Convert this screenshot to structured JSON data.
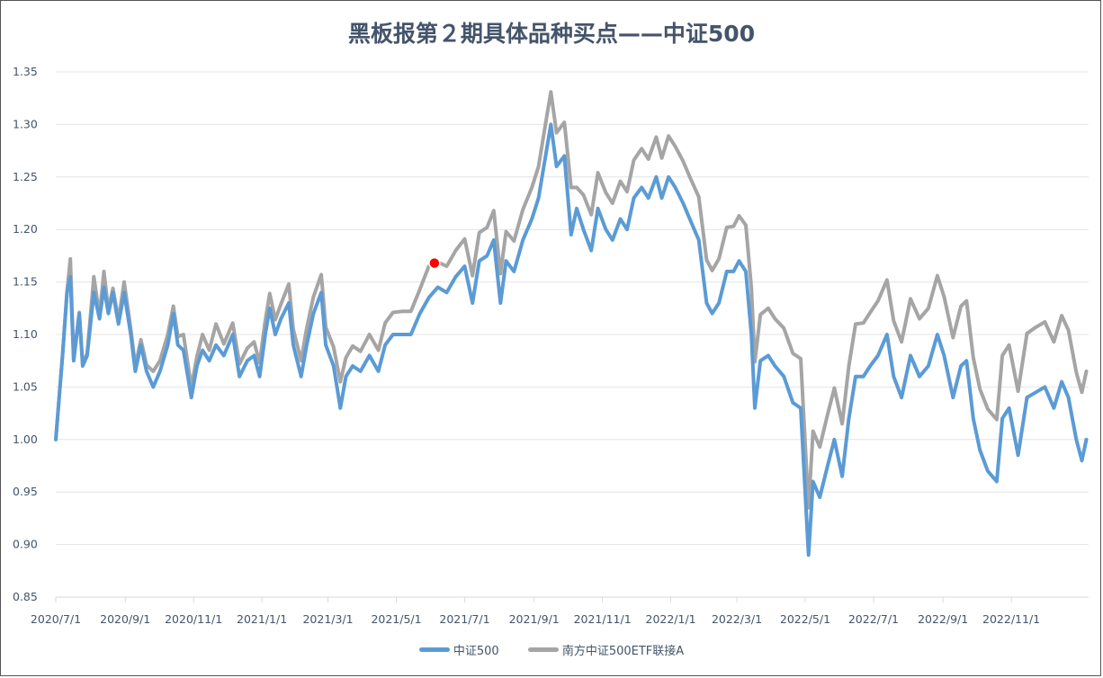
{
  "chart_data": {
    "type": "line",
    "title": "黑板报第２期具体品种买点——中证500",
    "xlabel": "",
    "ylabel": "",
    "x_start": "2020/7/1",
    "x_unit": "days since 2020/7/1",
    "xlim": [
      0,
      922
    ],
    "ylim": [
      0.85,
      1.35
    ],
    "y_ticks": [
      "0.85",
      "0.90",
      "0.95",
      "1.00",
      "1.05",
      "1.10",
      "1.15",
      "1.20",
      "1.25",
      "1.30",
      "1.35"
    ],
    "x_ticks": [
      {
        "label": "2020/7/1",
        "day": 0
      },
      {
        "label": "2020/9/1",
        "day": 62
      },
      {
        "label": "2020/11/1",
        "day": 123
      },
      {
        "label": "2021/1/1",
        "day": 184
      },
      {
        "label": "2021/3/1",
        "day": 243
      },
      {
        "label": "2021/5/1",
        "day": 304
      },
      {
        "label": "2021/7/1",
        "day": 365
      },
      {
        "label": "2021/9/1",
        "day": 427
      },
      {
        "label": "2021/11/1",
        "day": 488
      },
      {
        "label": "2022/1/1",
        "day": 549
      },
      {
        "label": "2022/3/1",
        "day": 608
      },
      {
        "label": "2022/5/1",
        "day": 669
      },
      {
        "label": "2022/7/1",
        "day": 730
      },
      {
        "label": "2022/9/1",
        "day": 792
      },
      {
        "label": "2022/11/1",
        "day": 853
      }
    ],
    "grid": true,
    "legend_position": "bottom",
    "x": [
      0,
      6,
      10,
      13,
      16,
      21,
      24,
      28,
      34,
      39,
      43,
      47,
      51,
      56,
      61,
      67,
      71,
      76,
      81,
      87,
      93,
      100,
      105,
      109,
      114,
      121,
      126,
      131,
      137,
      143,
      150,
      158,
      164,
      171,
      177,
      182,
      187,
      191,
      196,
      201,
      208,
      212,
      219,
      224,
      230,
      237,
      241,
      248,
      254,
      259,
      265,
      272,
      280,
      288,
      294,
      301,
      309,
      317,
      325,
      333,
      341,
      349,
      357,
      365,
      372,
      378,
      385,
      391,
      397,
      402,
      409,
      417,
      425,
      431,
      438,
      442,
      447,
      454,
      460,
      465,
      471,
      478,
      484,
      491,
      497,
      504,
      510,
      516,
      523,
      529,
      536,
      541,
      547,
      553,
      560,
      566,
      574,
      581,
      586,
      592,
      599,
      605,
      610,
      616,
      621,
      624,
      629,
      636,
      642,
      650,
      658,
      665,
      668,
      672,
      676,
      682,
      689,
      695,
      702,
      708,
      714,
      721,
      727,
      734,
      742,
      748,
      755,
      763,
      771,
      779,
      787,
      793,
      801,
      808,
      813,
      819,
      825,
      832,
      840,
      845,
      851,
      859,
      867,
      875,
      883,
      891,
      898,
      904,
      911,
      916,
      920
    ],
    "series": [
      {
        "name": "中证500",
        "color": "#5B9BD5",
        "values": [
          1.0,
          1.08,
          1.14,
          1.155,
          1.075,
          1.12,
          1.07,
          1.08,
          1.14,
          1.115,
          1.145,
          1.12,
          1.14,
          1.11,
          1.14,
          1.1,
          1.065,
          1.09,
          1.065,
          1.05,
          1.065,
          1.09,
          1.12,
          1.09,
          1.085,
          1.04,
          1.07,
          1.085,
          1.075,
          1.09,
          1.08,
          1.1,
          1.06,
          1.075,
          1.08,
          1.06,
          1.1,
          1.125,
          1.1,
          1.115,
          1.13,
          1.09,
          1.06,
          1.09,
          1.12,
          1.14,
          1.09,
          1.07,
          1.03,
          1.06,
          1.07,
          1.065,
          1.08,
          1.065,
          1.09,
          1.1,
          1.1,
          1.1,
          1.12,
          1.135,
          1.145,
          1.14,
          1.155,
          1.165,
          1.13,
          1.17,
          1.175,
          1.19,
          1.13,
          1.17,
          1.16,
          1.19,
          1.21,
          1.23,
          1.275,
          1.3,
          1.26,
          1.27,
          1.195,
          1.22,
          1.2,
          1.18,
          1.22,
          1.2,
          1.19,
          1.21,
          1.2,
          1.23,
          1.24,
          1.23,
          1.25,
          1.23,
          1.25,
          1.24,
          1.225,
          1.21,
          1.19,
          1.13,
          1.12,
          1.13,
          1.16,
          1.16,
          1.17,
          1.16,
          1.1,
          1.03,
          1.075,
          1.08,
          1.07,
          1.06,
          1.035,
          1.03,
          0.97,
          0.89,
          0.96,
          0.945,
          0.975,
          1.0,
          0.965,
          1.02,
          1.06,
          1.06,
          1.07,
          1.08,
          1.1,
          1.06,
          1.04,
          1.08,
          1.06,
          1.07,
          1.1,
          1.08,
          1.04,
          1.07,
          1.075,
          1.02,
          0.99,
          0.97,
          0.96,
          1.02,
          1.03,
          0.985,
          1.04,
          1.045,
          1.05,
          1.03,
          1.055,
          1.04,
          1.0,
          0.98,
          1.0
        ]
      },
      {
        "name": "南方中证500ETF联接A",
        "color": "#A5A5A5",
        "values": [
          1.0,
          1.08,
          1.141,
          1.172,
          1.076,
          1.121,
          1.072,
          1.082,
          1.155,
          1.118,
          1.16,
          1.123,
          1.144,
          1.114,
          1.15,
          1.105,
          1.07,
          1.095,
          1.071,
          1.065,
          1.075,
          1.1,
          1.127,
          1.098,
          1.1,
          1.05,
          1.079,
          1.1,
          1.085,
          1.11,
          1.091,
          1.111,
          1.072,
          1.087,
          1.093,
          1.073,
          1.113,
          1.139,
          1.114,
          1.129,
          1.148,
          1.105,
          1.075,
          1.106,
          1.136,
          1.157,
          1.107,
          1.088,
          1.055,
          1.078,
          1.089,
          1.084,
          1.1,
          1.085,
          1.111,
          1.121,
          1.122,
          1.122,
          1.143,
          1.165,
          1.169,
          1.165,
          1.18,
          1.191,
          1.156,
          1.197,
          1.202,
          1.218,
          1.158,
          1.198,
          1.189,
          1.219,
          1.24,
          1.26,
          1.306,
          1.331,
          1.292,
          1.302,
          1.24,
          1.24,
          1.233,
          1.214,
          1.254,
          1.235,
          1.225,
          1.246,
          1.236,
          1.266,
          1.277,
          1.267,
          1.288,
          1.268,
          1.289,
          1.279,
          1.265,
          1.25,
          1.231,
          1.171,
          1.161,
          1.172,
          1.202,
          1.203,
          1.213,
          1.204,
          1.144,
          1.074,
          1.119,
          1.125,
          1.115,
          1.106,
          1.082,
          1.077,
          1.017,
          0.935,
          1.008,
          0.993,
          1.024,
          1.049,
          1.015,
          1.07,
          1.11,
          1.111,
          1.121,
          1.132,
          1.152,
          1.113,
          1.093,
          1.134,
          1.115,
          1.125,
          1.156,
          1.136,
          1.097,
          1.127,
          1.132,
          1.078,
          1.048,
          1.029,
          1.019,
          1.08,
          1.09,
          1.046,
          1.101,
          1.107,
          1.112,
          1.093,
          1.118,
          1.104,
          1.064,
          1.045,
          1.065
        ]
      }
    ],
    "annotations": [
      {
        "type": "point",
        "label": "buy point",
        "day": 338,
        "value": 1.168,
        "color": "#FF0000"
      }
    ]
  }
}
